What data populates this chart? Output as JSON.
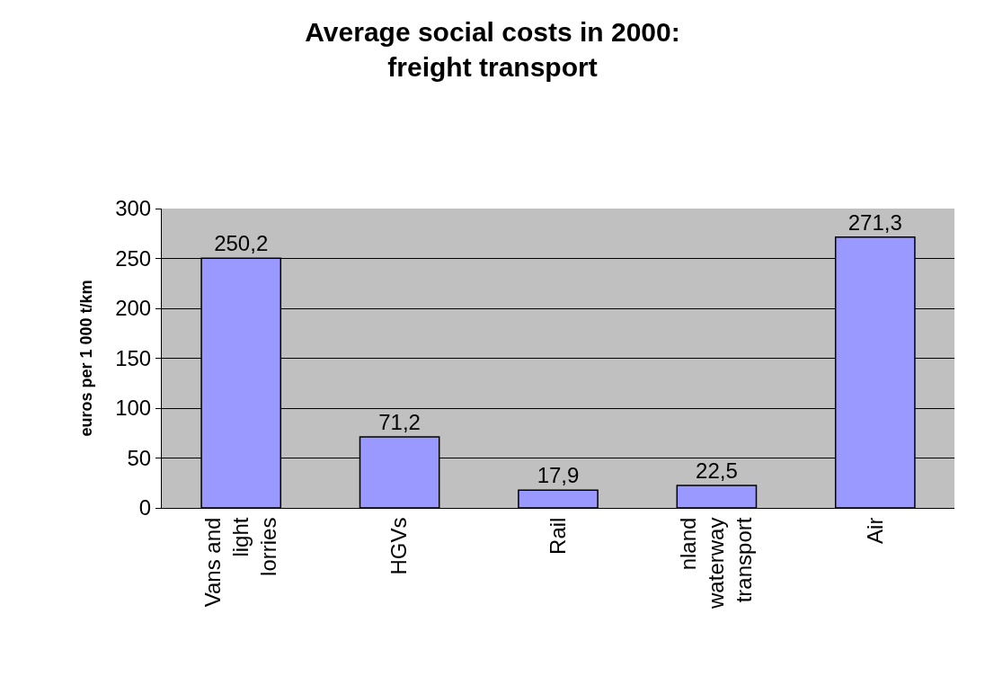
{
  "chart_data": {
    "type": "bar",
    "title": "Average social costs in 2000: freight transport",
    "ylabel": "euros per 1 000 t/km",
    "categories": [
      "Vans and light lorries",
      "HGVs",
      "Rail",
      "nland waterway transport",
      "Air"
    ],
    "values": [
      250.2,
      71.2,
      17.9,
      22.5,
      271.3
    ],
    "value_labels": [
      "250,2",
      "71,2",
      "17,9",
      "22,5",
      "271,3"
    ],
    "color": "#9999ff",
    "ylim": [
      0,
      300
    ],
    "yticks": [
      0,
      50,
      100,
      150,
      200,
      250,
      300
    ],
    "grid": "y"
  }
}
